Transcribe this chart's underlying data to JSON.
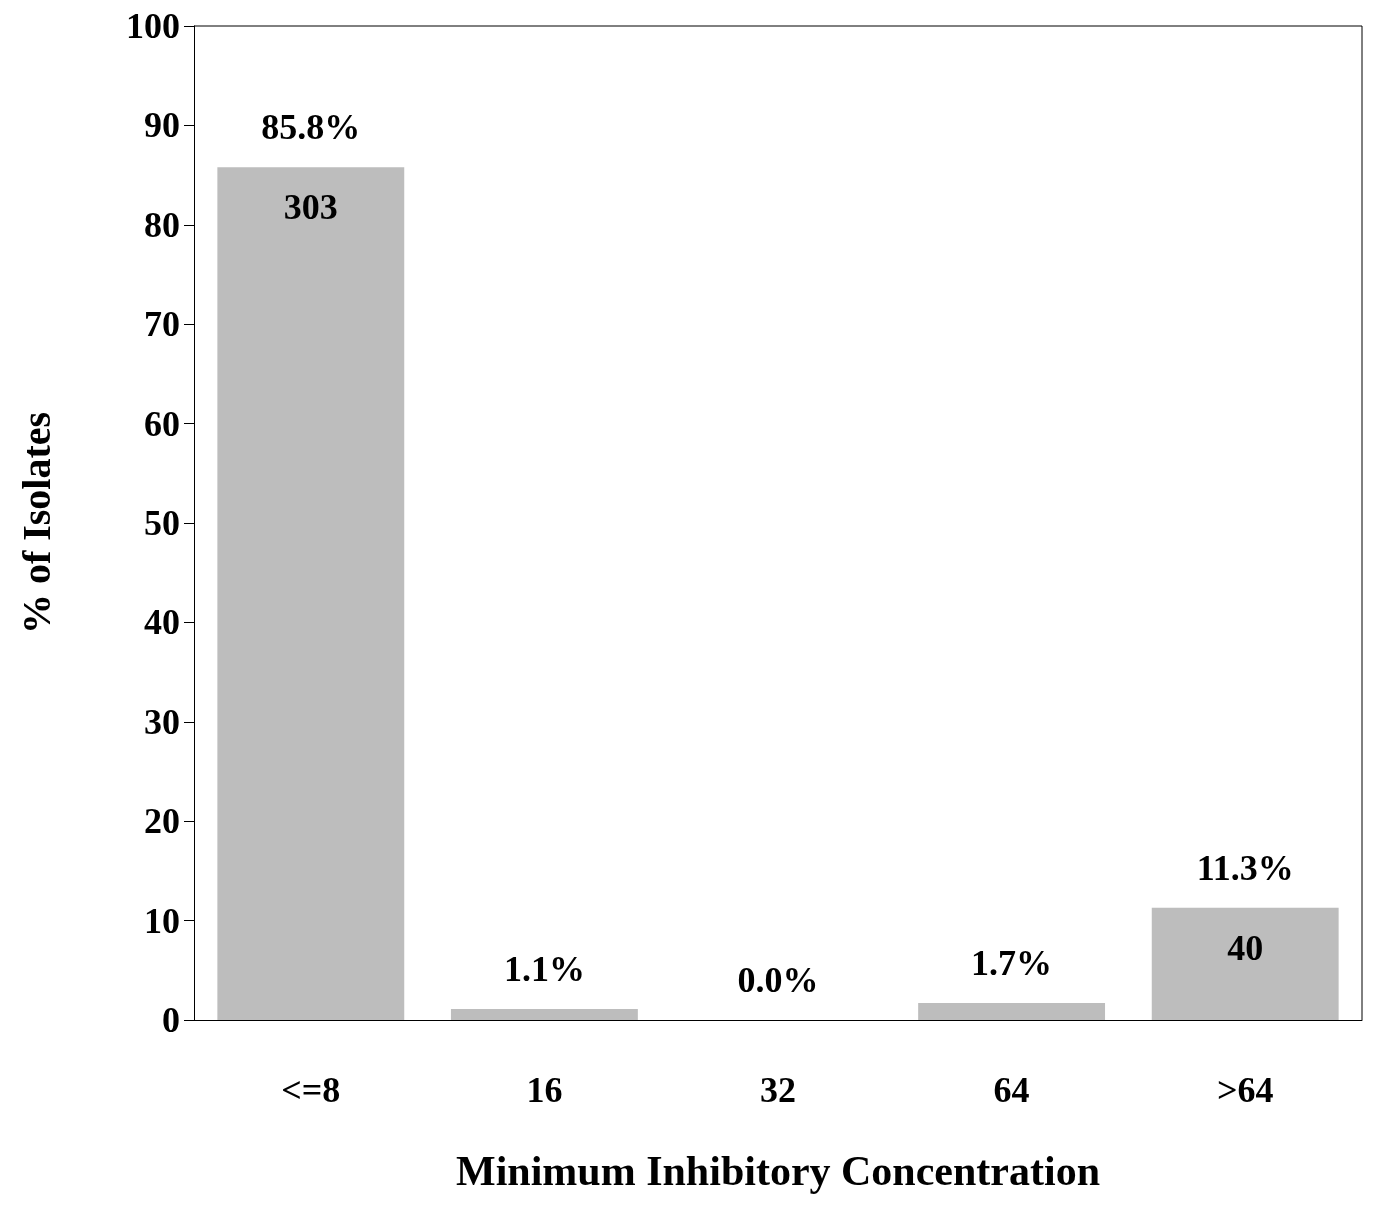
{
  "chart_data": {
    "type": "bar",
    "xlabel": "Minimum Inhibitory Concentration",
    "ylabel": "% of Isolates",
    "categories": [
      "<=8",
      "16",
      "32",
      "64",
      ">64"
    ],
    "values": [
      85.8,
      1.1,
      0.0,
      1.7,
      11.3
    ],
    "value_labels": [
      "85.8%",
      "1.1%",
      "0.0%",
      "1.7%",
      "11.3%"
    ],
    "color": "#bdbdbd",
    "ylim": [
      0,
      100
    ],
    "yticks": [
      0,
      10,
      20,
      30,
      40,
      50,
      60,
      70,
      80,
      90,
      100
    ],
    "grid": false,
    "annotations": [
      {
        "text": "303",
        "x": "<=8",
        "y": 85.8
      },
      {
        "text": "40",
        "x": ">64",
        "y": 11.3
      }
    ]
  }
}
